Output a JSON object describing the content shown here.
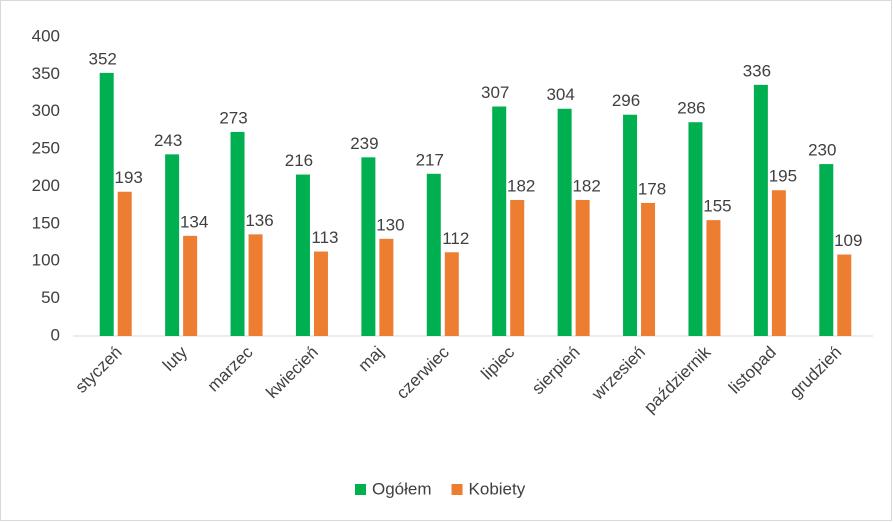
{
  "chart_data": {
    "type": "bar",
    "categories": [
      "styczeń",
      "luty",
      "marzec",
      "kwiecień",
      "maj",
      "czerwiec",
      "lipiec",
      "sierpień",
      "wrzesień",
      "październik",
      "listopad",
      "grudzień"
    ],
    "series": [
      {
        "name": "Ogółem",
        "color": "#00b050",
        "values": [
          352,
          243,
          273,
          216,
          239,
          217,
          307,
          304,
          296,
          286,
          336,
          230
        ]
      },
      {
        "name": "Kobiety",
        "color": "#ed7d31",
        "values": [
          193,
          134,
          136,
          113,
          130,
          112,
          182,
          182,
          178,
          155,
          195,
          109
        ]
      }
    ],
    "ylim": [
      0,
      400
    ],
    "yticks": [
      0,
      50,
      100,
      150,
      200,
      250,
      300,
      350,
      400
    ],
    "grid": false,
    "legend": "bottom"
  }
}
